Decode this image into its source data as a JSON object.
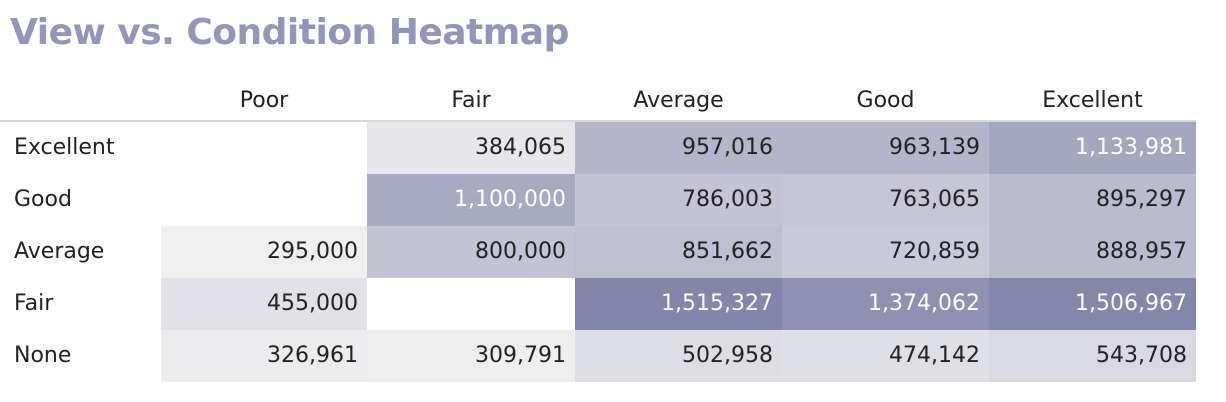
{
  "chart_data": {
    "type": "heatmap",
    "title": "View vs. Condition Heatmap",
    "columns": [
      "Poor",
      "Fair",
      "Average",
      "Good",
      "Excellent"
    ],
    "rows": [
      "Excellent",
      "Good",
      "Average",
      "Fair",
      "None"
    ],
    "values": [
      [
        null,
        384065,
        957016,
        963139,
        1133981
      ],
      [
        null,
        1100000,
        786003,
        763065,
        895297
      ],
      [
        295000,
        800000,
        851662,
        720859,
        888957
      ],
      [
        455000,
        null,
        1515327,
        1374062,
        1506967
      ],
      [
        326961,
        309791,
        502958,
        474142,
        543708
      ]
    ],
    "color_scale": {
      "low": "#efeff0",
      "high": "#8385aa",
      "min": 295000,
      "max": 1515327
    }
  }
}
